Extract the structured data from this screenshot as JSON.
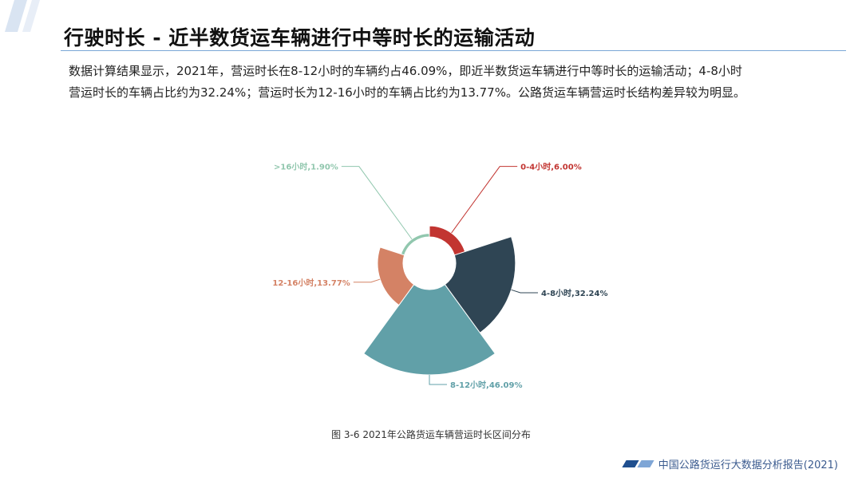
{
  "header": {
    "title": "行驶时长 - 近半数货运车辆进行中等时长的运输活动"
  },
  "summary": {
    "line1": "数据计算结果显示，2021年，营运时长在8-12小时的车辆约占46.09%，即近半数货运车辆进行中等时长的运输活动；4-8小时",
    "line2": "营运时长的车辆占比约为32.24%；营运时长为12-16小时的车辆占比约为13.77%。公路货运车辆营运时长结构差异较为明显。"
  },
  "chart_data": {
    "type": "pie",
    "variant": "nightingale-rose",
    "categories": [
      "0-4小时",
      "4-8小时",
      "8-12小时",
      "12-16小时",
      ">16小时"
    ],
    "values": [
      6.0,
      32.24,
      46.09,
      13.77,
      1.9
    ],
    "labels": [
      "0-4小时,6.00%",
      "4-8小时,32.24%",
      "8-12小时,46.09%",
      "12-16小时,13.77%",
      ">16小时,1.90%"
    ],
    "colors": [
      "#c23531",
      "#2f4554",
      "#61a0a8",
      "#d48265",
      "#91c7ae"
    ],
    "unit": "%",
    "legend": "none"
  },
  "caption": "图 3-6 2021年公路货运车辆营运时长区间分布",
  "footer": {
    "text": "中国公路货运行大数据分析报告(2021)"
  }
}
